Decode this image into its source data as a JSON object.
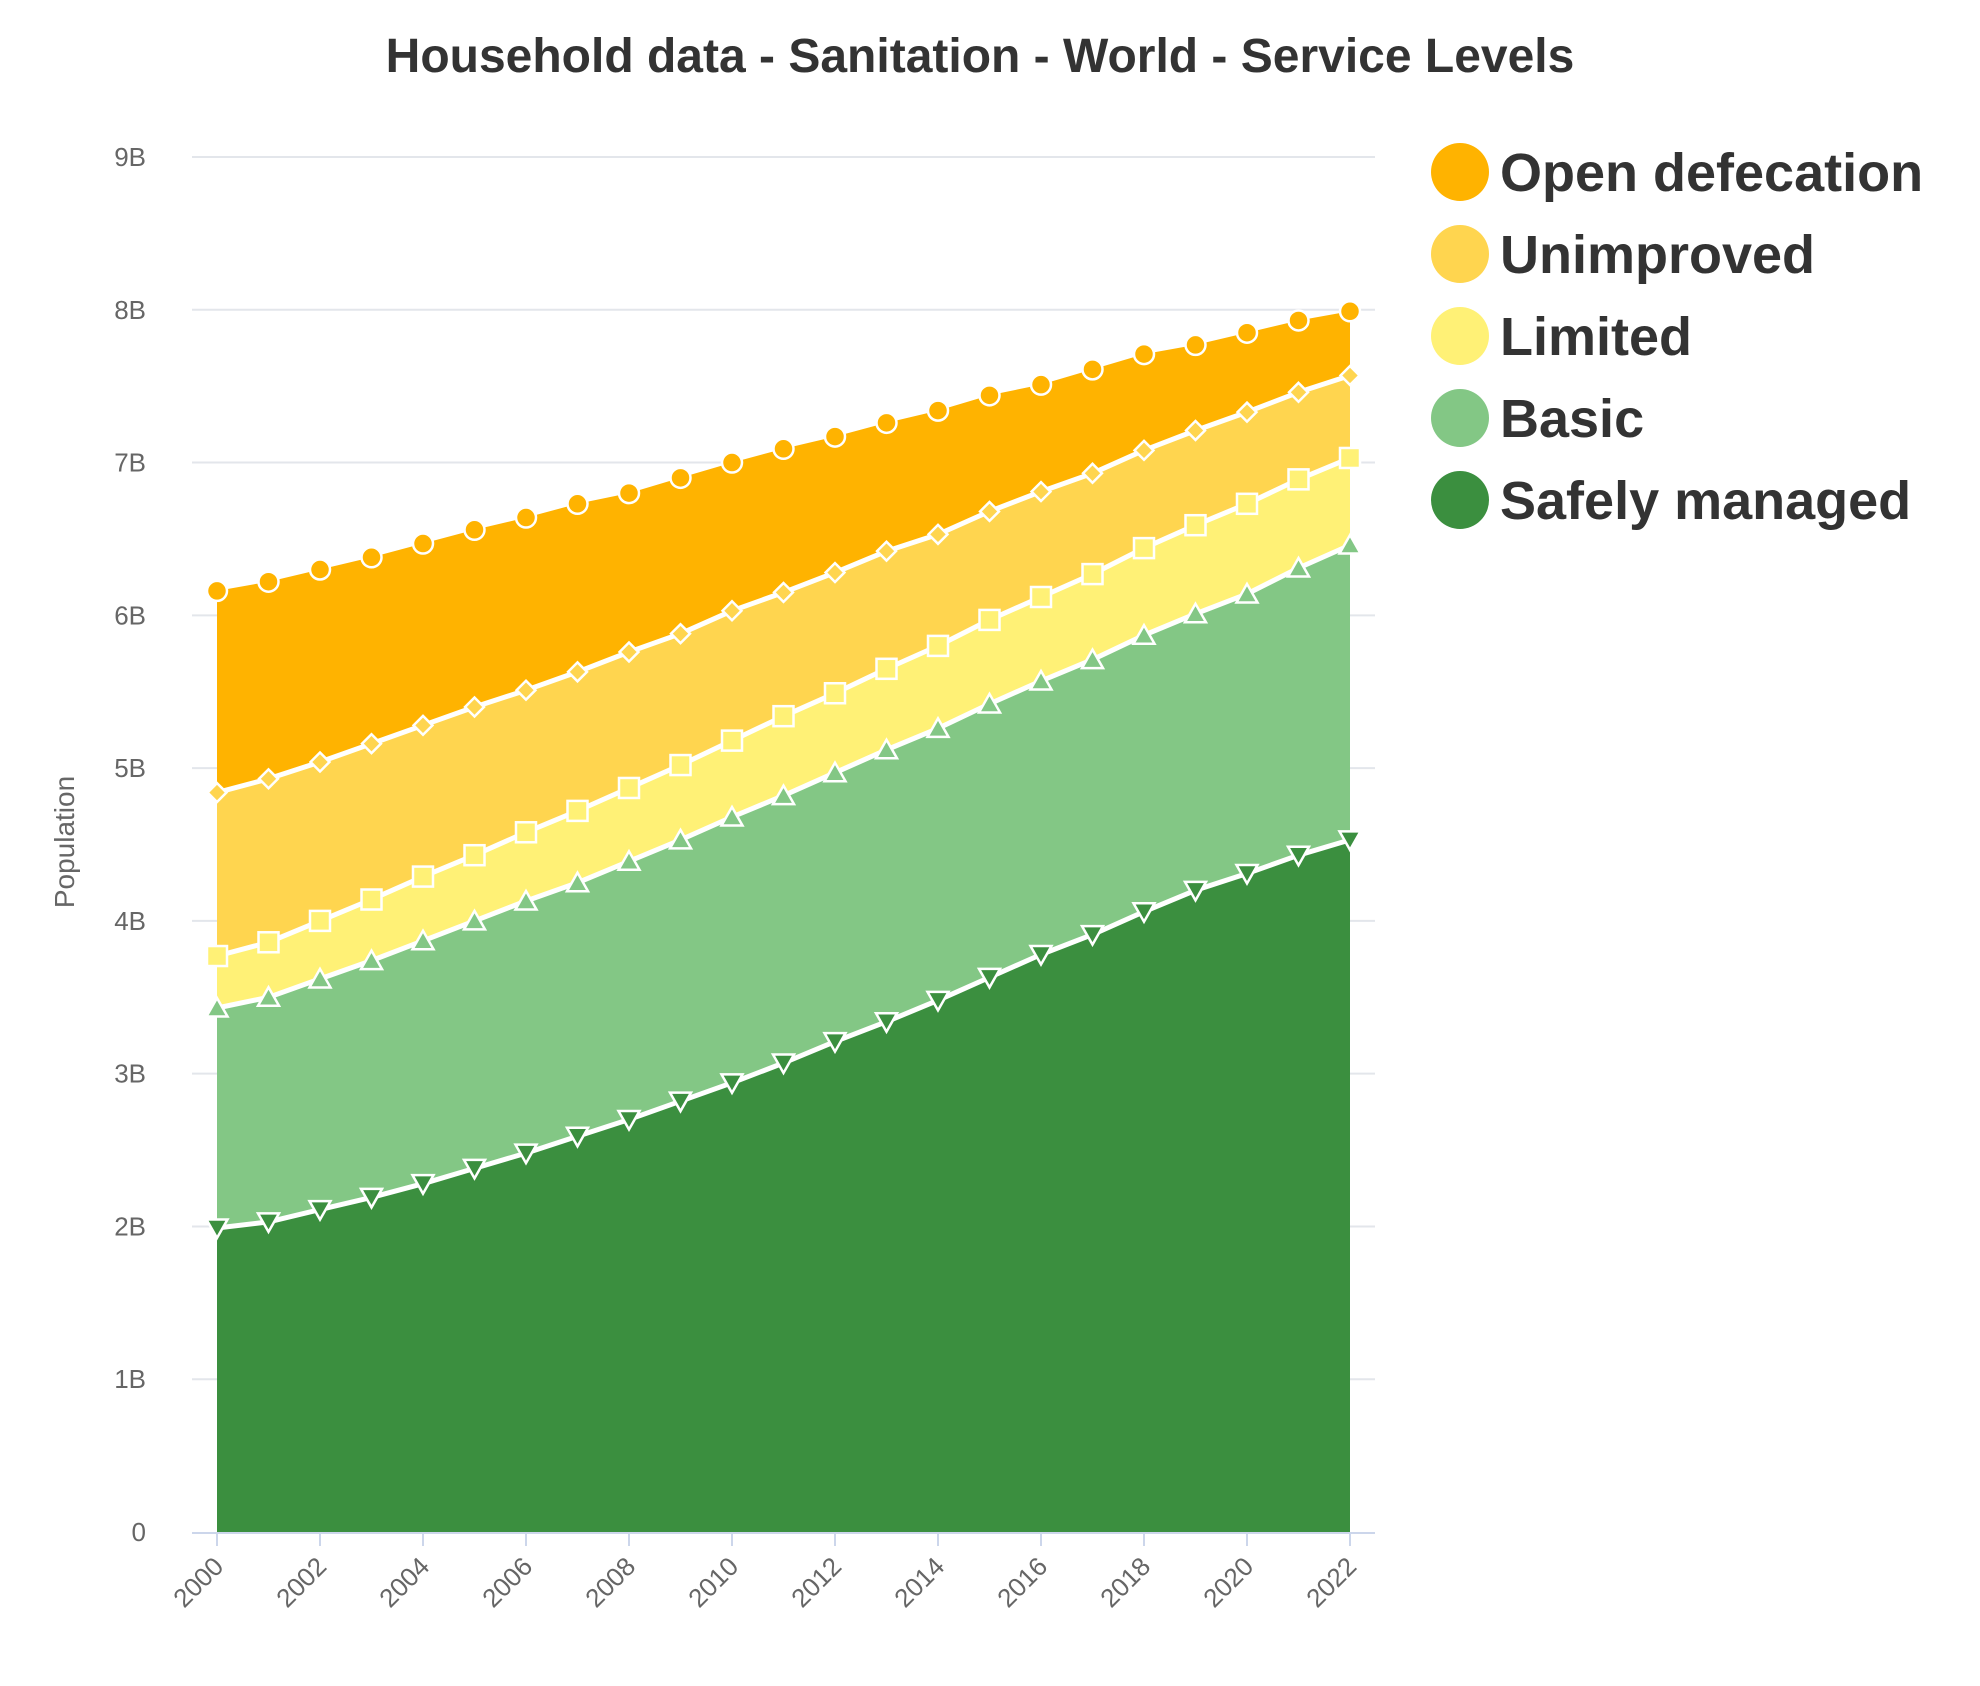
{
  "chart_data": {
    "type": "area",
    "stacked": true,
    "title": "Household data - Sanitation - World - Service Levels",
    "xlabel": "",
    "ylabel": "Population",
    "x": [
      2000,
      2001,
      2002,
      2003,
      2004,
      2005,
      2006,
      2007,
      2008,
      2009,
      2010,
      2011,
      2012,
      2013,
      2014,
      2015,
      2016,
      2017,
      2018,
      2019,
      2020,
      2021,
      2022
    ],
    "x_ticks": [
      "2000",
      "2002",
      "2004",
      "2006",
      "2008",
      "2010",
      "2012",
      "2014",
      "2016",
      "2018",
      "2020",
      "2022"
    ],
    "ylim": [
      0,
      9000000000
    ],
    "y_ticks": [
      "0",
      "1B",
      "2B",
      "3B",
      "4B",
      "5B",
      "6B",
      "7B",
      "8B",
      "9B"
    ],
    "grid": true,
    "legend_position": "top-right",
    "series": [
      {
        "name": "Safely managed",
        "color": "#3b8f3f",
        "marker": "triangle-down",
        "values": [
          1990000000,
          2030000000,
          2110000000,
          2190000000,
          2280000000,
          2380000000,
          2480000000,
          2590000000,
          2700000000,
          2820000000,
          2940000000,
          3070000000,
          3210000000,
          3340000000,
          3480000000,
          3630000000,
          3780000000,
          3910000000,
          4060000000,
          4200000000,
          4310000000,
          4430000000,
          4530000000
        ]
      },
      {
        "name": "Basic",
        "color": "#83c785",
        "marker": "triangle",
        "values": [
          1440000000,
          1470000000,
          1510000000,
          1550000000,
          1590000000,
          1620000000,
          1650000000,
          1660000000,
          1690000000,
          1710000000,
          1740000000,
          1750000000,
          1760000000,
          1780000000,
          1780000000,
          1790000000,
          1790000000,
          1800000000,
          1810000000,
          1810000000,
          1830000000,
          1880000000,
          1930000000
        ]
      },
      {
        "name": "Limited",
        "color": "#fff176",
        "marker": "square",
        "values": [
          340000000,
          360000000,
          380000000,
          400000000,
          420000000,
          430000000,
          450000000,
          470000000,
          480000000,
          490000000,
          500000000,
          520000000,
          520000000,
          530000000,
          540000000,
          550000000,
          550000000,
          560000000,
          570000000,
          580000000,
          590000000,
          580000000,
          570000000
        ]
      },
      {
        "name": "Unimproved",
        "color": "#ffd54f",
        "marker": "diamond",
        "values": [
          1070000000,
          1070000000,
          1040000000,
          1020000000,
          990000000,
          970000000,
          930000000,
          910000000,
          890000000,
          860000000,
          850000000,
          810000000,
          790000000,
          770000000,
          730000000,
          710000000,
          690000000,
          660000000,
          640000000,
          620000000,
          600000000,
          570000000,
          540000000
        ]
      },
      {
        "name": "Open defecation",
        "color": "#ffb300",
        "marker": "circle",
        "values": [
          1320000000,
          1290000000,
          1260000000,
          1220000000,
          1190000000,
          1160000000,
          1130000000,
          1100000000,
          1040000000,
          1020000000,
          970000000,
          940000000,
          890000000,
          840000000,
          810000000,
          760000000,
          700000000,
          680000000,
          630000000,
          560000000,
          520000000,
          470000000,
          420000000
        ]
      }
    ]
  }
}
